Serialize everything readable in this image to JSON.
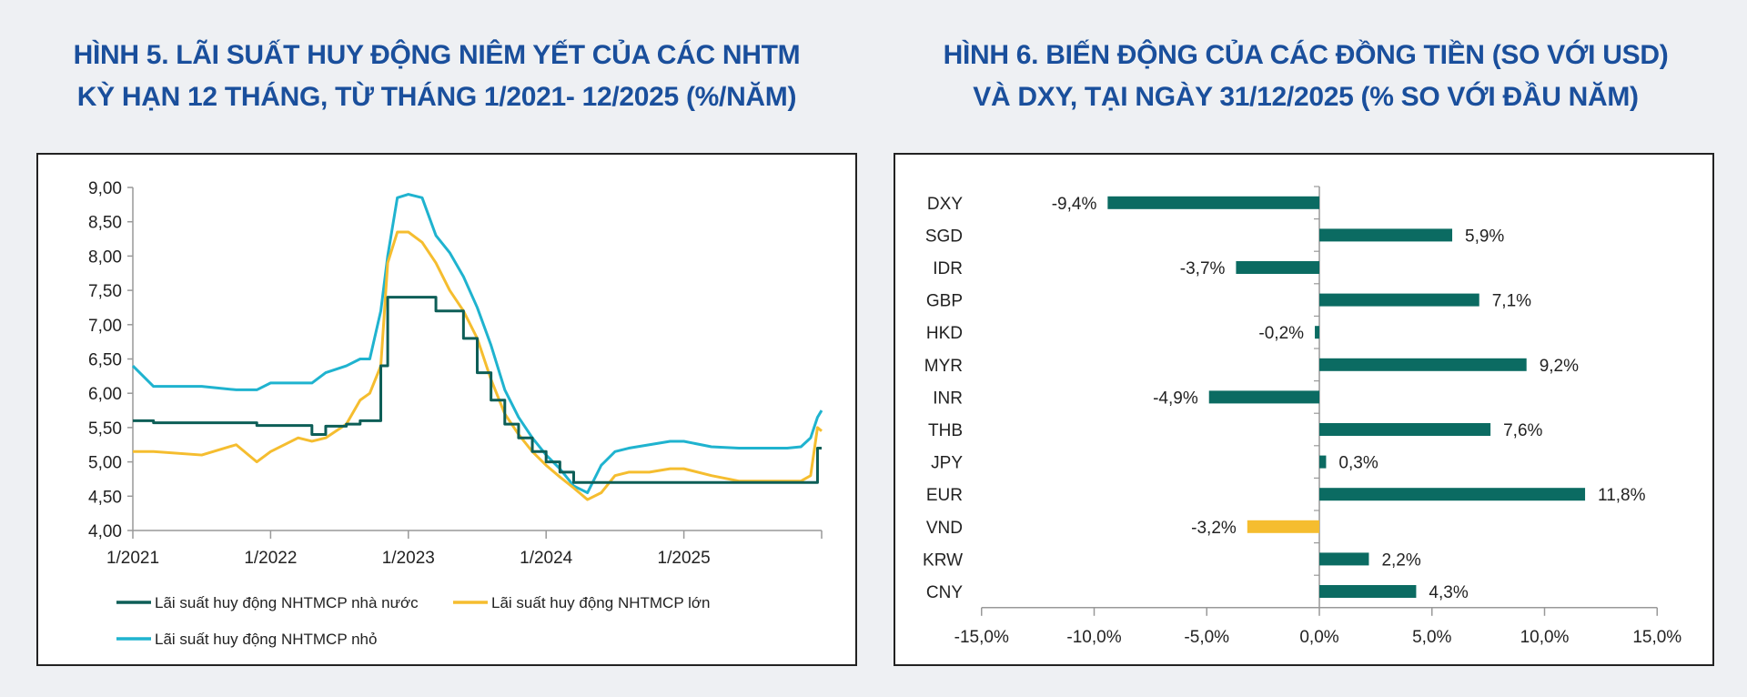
{
  "figure5": {
    "title_line1": "HÌNH 5. LÃI SUẤT HUY ĐỘNG NIÊM YẾT CỦA CÁC NHTM",
    "title_line2": "KỲ HẠN 12 THÁNG, TỪ THÁNG 1/2021- 12/2025 (%/NĂM)"
  },
  "figure6": {
    "title_line1": "HÌNH 6. BIẾN ĐỘNG CỦA CÁC ĐỒNG TIỀN (SO VỚI USD)",
    "title_line2": "VÀ DXY, TẠI NGÀY 31/12/2025 (% SO VỚI ĐẦU NĂM)"
  },
  "colors": {
    "title": "#1a4f9c",
    "state_owned": "#0d5e57",
    "large": "#f5bd2f",
    "small": "#1fb3cf",
    "bar_default": "#0b6b62",
    "bar_vnd": "#f5bd2f",
    "axis": "#999999"
  },
  "chart_data": [
    {
      "type": "line",
      "title": "HÌNH 5. LÃI SUẤT HUY ĐỘNG NIÊM YẾT CỦA CÁC NHTM KỲ HẠN 12 THÁNG, TỪ THÁNG 1/2021- 12/2025 (%/NĂM)",
      "xlabel": "",
      "ylabel": "",
      "ylim": [
        4.0,
        9.0
      ],
      "yticks": [
        "9,00",
        "8,50",
        "8,00",
        "7,50",
        "7,00",
        "6,50",
        "6,00",
        "5,50",
        "5,00",
        "4,50",
        "4,00"
      ],
      "xticks": [
        "1/2021",
        "1/2022",
        "1/2023",
        "1/2024",
        "1/2025"
      ],
      "grid": false,
      "legend_position": "bottom",
      "x": [
        2021.0,
        2021.15,
        2021.5,
        2021.75,
        2021.9,
        2022.0,
        2022.2,
        2022.3,
        2022.4,
        2022.55,
        2022.65,
        2022.72,
        2022.8,
        2022.85,
        2022.92,
        2023.0,
        2023.1,
        2023.2,
        2023.3,
        2023.4,
        2023.5,
        2023.6,
        2023.7,
        2023.8,
        2023.9,
        2024.0,
        2024.1,
        2024.2,
        2024.3,
        2024.4,
        2024.5,
        2024.6,
        2024.75,
        2024.9,
        2025.0,
        2025.2,
        2025.4,
        2025.6,
        2025.75,
        2025.85,
        2025.92,
        2025.97,
        2026.0
      ],
      "series": [
        {
          "name": "Lãi suất huy động NHTMCP nhà nước",
          "values": [
            5.6,
            5.57,
            5.57,
            5.57,
            5.53,
            5.53,
            5.53,
            5.4,
            5.52,
            5.55,
            5.6,
            5.6,
            6.4,
            7.4,
            7.4,
            7.4,
            7.4,
            7.2,
            7.2,
            6.8,
            6.3,
            5.9,
            5.55,
            5.35,
            5.15,
            5.0,
            4.85,
            4.7,
            4.7,
            4.7,
            4.7,
            4.7,
            4.7,
            4.7,
            4.7,
            4.7,
            4.7,
            4.7,
            4.7,
            4.7,
            4.7,
            5.2,
            5.2
          ]
        },
        {
          "name": "Lãi suất huy động NHTMCP lớn",
          "values": [
            5.15,
            5.15,
            5.1,
            5.25,
            5.0,
            5.15,
            5.35,
            5.3,
            5.35,
            5.55,
            5.9,
            6.0,
            6.4,
            7.9,
            8.35,
            8.35,
            8.2,
            7.9,
            7.5,
            7.2,
            6.8,
            6.2,
            5.7,
            5.4,
            5.15,
            4.95,
            4.78,
            4.62,
            4.45,
            4.55,
            4.8,
            4.85,
            4.85,
            4.9,
            4.9,
            4.8,
            4.72,
            4.72,
            4.72,
            4.72,
            4.8,
            5.5,
            5.45
          ]
        },
        {
          "name": "Lãi suất huy động NHTMCP nhỏ",
          "values": [
            6.4,
            6.1,
            6.1,
            6.05,
            6.05,
            6.15,
            6.15,
            6.15,
            6.3,
            6.4,
            6.5,
            6.5,
            7.2,
            8.0,
            8.85,
            8.9,
            8.85,
            8.3,
            8.05,
            7.7,
            7.25,
            6.7,
            6.05,
            5.65,
            5.35,
            5.1,
            4.9,
            4.65,
            4.55,
            4.95,
            5.15,
            5.2,
            5.25,
            5.3,
            5.3,
            5.22,
            5.2,
            5.2,
            5.2,
            5.22,
            5.35,
            5.65,
            5.75
          ]
        }
      ]
    },
    {
      "type": "bar",
      "orientation": "horizontal",
      "title": "HÌNH 6. BIẾN ĐỘNG CỦA CÁC ĐỒNG TIỀN (SO VỚI USD) VÀ DXY, TẠI NGÀY 31/12/2025 (% SO VỚI ĐẦU NĂM)",
      "xlabel": "",
      "ylabel": "",
      "xlim": [
        -15.0,
        15.0
      ],
      "xticks": [
        "-15,0%",
        "-10,0%",
        "-5,0%",
        "0,0%",
        "5,0%",
        "10,0%",
        "15,0%"
      ],
      "grid": false,
      "categories": [
        "DXY",
        "SGD",
        "IDR",
        "GBP",
        "HKD",
        "MYR",
        "INR",
        "THB",
        "JPY",
        "EUR",
        "VND",
        "KRW",
        "CNY"
      ],
      "values": [
        -9.4,
        5.9,
        -3.7,
        7.1,
        -0.2,
        9.2,
        -4.9,
        7.6,
        0.3,
        11.8,
        -3.2,
        2.2,
        4.3
      ],
      "labels": [
        "-9,4%",
        "5,9%",
        "-3,7%",
        "7,1%",
        "-0,2%",
        "9,2%",
        "-4,9%",
        "7,6%",
        "0,3%",
        "11,8%",
        "-3,2%",
        "2,2%",
        "4,3%"
      ],
      "highlight": "VND"
    }
  ]
}
